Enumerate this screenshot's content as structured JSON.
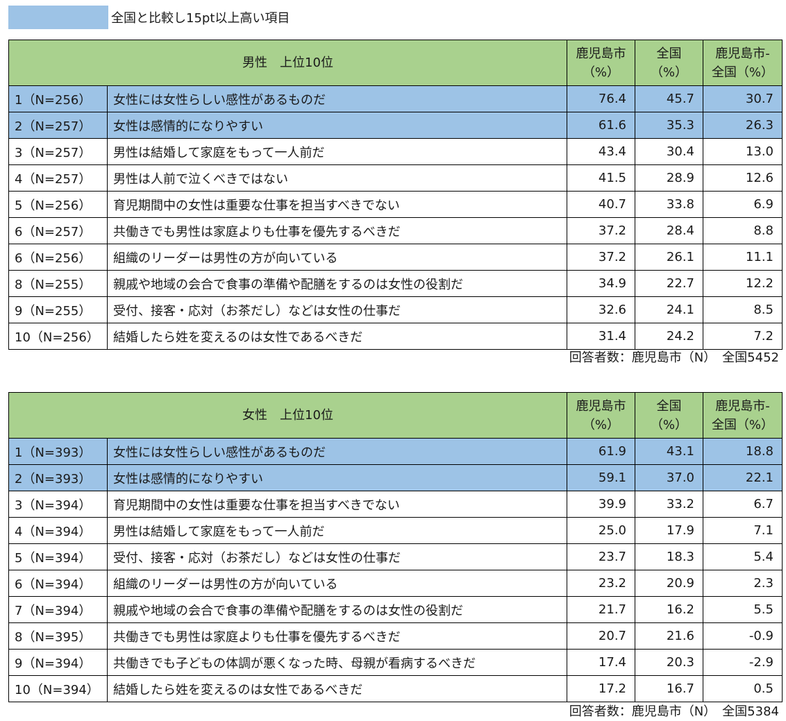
{
  "legend": {
    "text": "全国と比較し15pt以上高い項目",
    "color": "#9dc3e6"
  },
  "colors": {
    "header": "#a9d18e",
    "highlight": "#9dc3e6"
  },
  "headers": {
    "city": [
      "鹿児島市",
      "（%）"
    ],
    "national": [
      "全国",
      "（%）"
    ],
    "diff": [
      "鹿児島市-",
      "全国（%）"
    ]
  },
  "tables": [
    {
      "title": "男性　上位10位",
      "rows": [
        {
          "rank": "1（N=256）",
          "item": "女性には女性らしい感性があるものだ",
          "city": "76.4",
          "national": "45.7",
          "diff": "30.7",
          "highlight": true
        },
        {
          "rank": "2（N=257）",
          "item": "女性は感情的になりやすい",
          "city": "61.6",
          "national": "35.3",
          "diff": "26.3",
          "highlight": true
        },
        {
          "rank": "3（N=257）",
          "item": "男性は結婚して家庭をもって一人前だ",
          "city": "43.4",
          "national": "30.4",
          "diff": "13.0",
          "highlight": false
        },
        {
          "rank": "4（N=257）",
          "item": "男性は人前で泣くべきではない",
          "city": "41.5",
          "national": "28.9",
          "diff": "12.6",
          "highlight": false
        },
        {
          "rank": "5（N=256）",
          "item": "育児期間中の女性は重要な仕事を担当すべきでない",
          "city": "40.7",
          "national": "33.8",
          "diff": "6.9",
          "highlight": false
        },
        {
          "rank": "6（N=257）",
          "item": "共働きでも男性は家庭よりも仕事を優先するべきだ",
          "city": "37.2",
          "national": "28.4",
          "diff": "8.8",
          "highlight": false
        },
        {
          "rank": "6（N=256）",
          "item": "組織のリーダーは男性の方が向いている",
          "city": "37.2",
          "national": "26.1",
          "diff": "11.1",
          "highlight": false
        },
        {
          "rank": "8（N=255）",
          "item": "親戚や地域の会合で食事の準備や配膳をするのは女性の役割だ",
          "city": "34.9",
          "national": "22.7",
          "diff": "12.2",
          "highlight": false
        },
        {
          "rank": "9（N=255）",
          "item": "受付、接客・応対（お茶だし）などは女性の仕事だ",
          "city": "32.6",
          "national": "24.1",
          "diff": "8.5",
          "highlight": false
        },
        {
          "rank": "10（N=256）",
          "item": "結婚したら姓を変えるのは女性であるべきだ",
          "city": "31.4",
          "national": "24.2",
          "diff": "7.2",
          "highlight": false
        }
      ],
      "note": "回答者数：鹿児島市（N）　全国5452"
    },
    {
      "title": "女性　上位10位",
      "rows": [
        {
          "rank": "1（N=393）",
          "item": "女性には女性らしい感性があるものだ",
          "city": "61.9",
          "national": "43.1",
          "diff": "18.8",
          "highlight": true
        },
        {
          "rank": "2（N=393）",
          "item": "女性は感情的になりやすい",
          "city": "59.1",
          "national": "37.0",
          "diff": "22.1",
          "highlight": true
        },
        {
          "rank": "3（N=394）",
          "item": "育児期間中の女性は重要な仕事を担当すべきでない",
          "city": "39.9",
          "national": "33.2",
          "diff": "6.7",
          "highlight": false
        },
        {
          "rank": "4（N=394）",
          "item": "男性は結婚して家庭をもって一人前だ",
          "city": "25.0",
          "national": "17.9",
          "diff": "7.1",
          "highlight": false
        },
        {
          "rank": "5（N=394）",
          "item": "受付、接客・応対（お茶だし）などは女性の仕事だ",
          "city": "23.7",
          "national": "18.3",
          "diff": "5.4",
          "highlight": false
        },
        {
          "rank": "6（N=394）",
          "item": "組織のリーダーは男性の方が向いている",
          "city": "23.2",
          "national": "20.9",
          "diff": "2.3",
          "highlight": false
        },
        {
          "rank": "7（N=394）",
          "item": "親戚や地域の会合で食事の準備や配膳をするのは女性の役割だ",
          "city": "21.7",
          "national": "16.2",
          "diff": "5.5",
          "highlight": false
        },
        {
          "rank": "8（N=395）",
          "item": "共働きでも男性は家庭よりも仕事を優先するべきだ",
          "city": "20.7",
          "national": "21.6",
          "diff": "-0.9",
          "highlight": false
        },
        {
          "rank": "9（N=394）",
          "item": "共働きでも子どもの体調が悪くなった時、母親が看病するべきだ",
          "city": "17.4",
          "national": "20.3",
          "diff": "-2.9",
          "highlight": false
        },
        {
          "rank": "10（N=394）",
          "item": "結婚したら姓を変えるのは女性であるべきだ",
          "city": "17.2",
          "national": "16.7",
          "diff": "0.5",
          "highlight": false
        }
      ],
      "note": "回答者数：鹿児島市（N）　全国5384"
    }
  ]
}
